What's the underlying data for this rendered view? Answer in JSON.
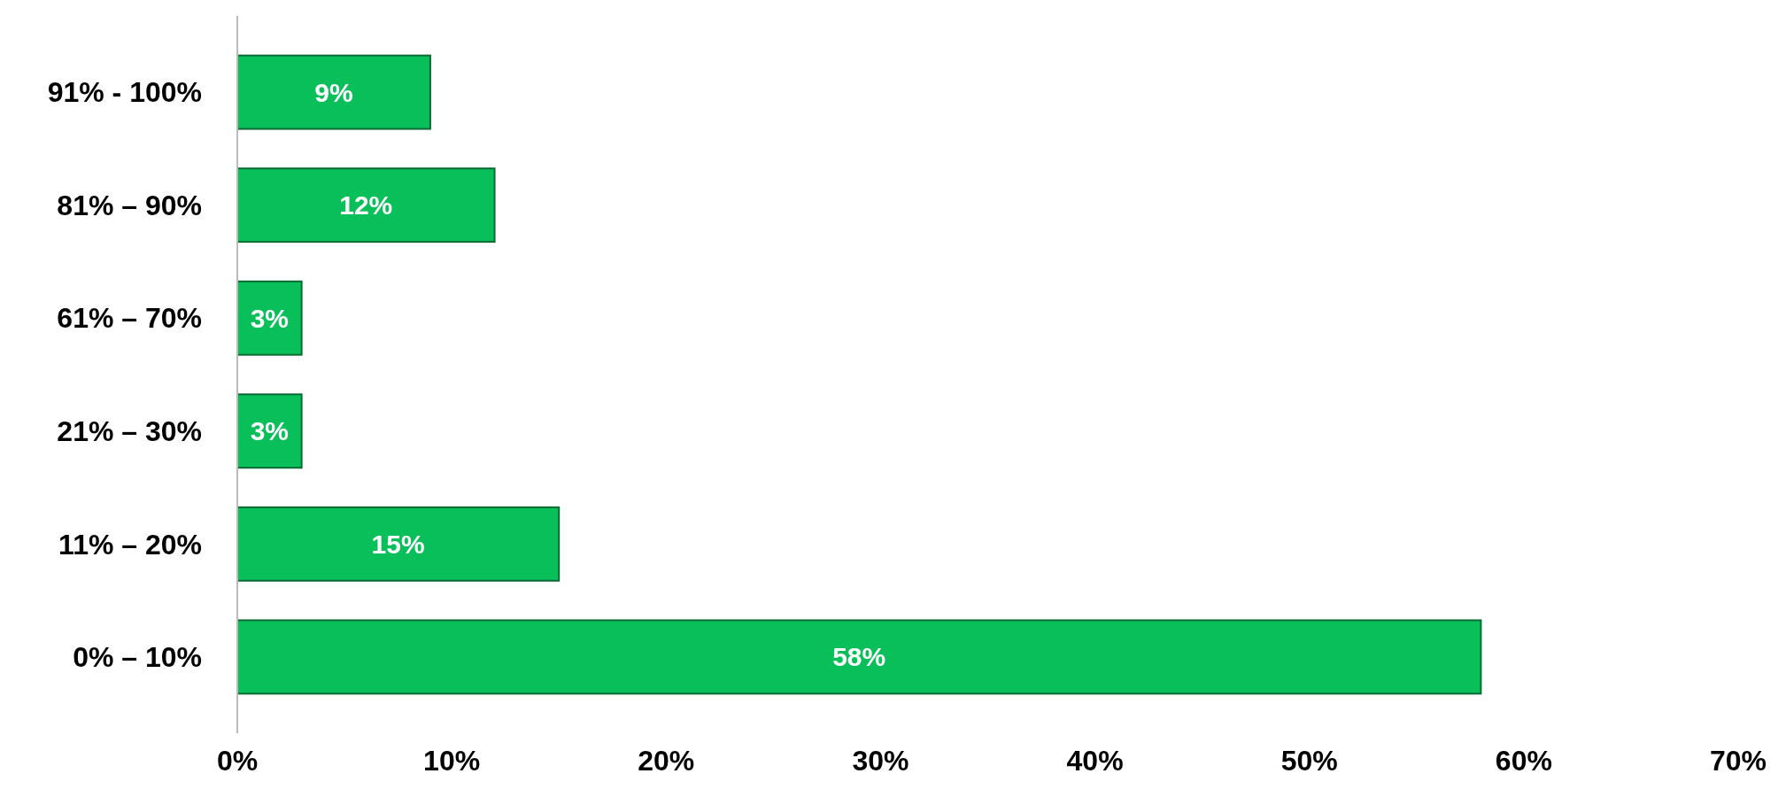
{
  "chart_data": {
    "type": "bar",
    "orientation": "horizontal",
    "categories": [
      "91% - 100%",
      "81% – 90%",
      "61% – 70%",
      "21% – 30%",
      "11% – 20%",
      "0%  – 10%"
    ],
    "values": [
      9,
      12,
      3,
      3,
      15,
      58
    ],
    "value_labels": [
      "9%",
      "12%",
      "3%",
      "3%",
      "15%",
      "58%"
    ],
    "color": "#09bf5a",
    "xlim": [
      0,
      70
    ],
    "xticks": [
      {
        "value": 0,
        "label": "0%"
      },
      {
        "value": 10,
        "label": "10%"
      },
      {
        "value": 20,
        "label": "20%"
      },
      {
        "value": 30,
        "label": "30%"
      },
      {
        "value": 40,
        "label": "40%"
      },
      {
        "value": 50,
        "label": "50%"
      },
      {
        "value": 60,
        "label": "60%"
      },
      {
        "value": 70,
        "label": "70%"
      }
    ],
    "grid": false
  }
}
